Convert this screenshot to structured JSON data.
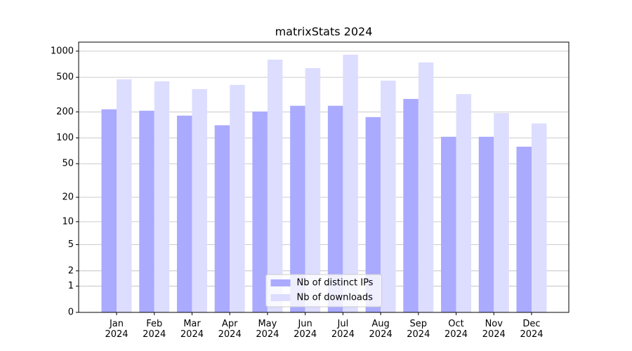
{
  "chart_data": {
    "type": "bar",
    "title": "matrixStats 2024",
    "categories": [
      "Jan\n2024",
      "Feb\n2024",
      "Mar\n2024",
      "Apr\n2024",
      "May\n2024",
      "Jun\n2024",
      "Jul\n2024",
      "Aug\n2024",
      "Sep\n2024",
      "Oct\n2024",
      "Nov\n2024",
      "Dec\n2024"
    ],
    "series": [
      {
        "name": "Nb of distinct IPs",
        "color": "#aaaaff",
        "values": [
          214,
          206,
          181,
          140,
          202,
          235,
          235,
          174,
          282,
          103,
          103,
          79
        ]
      },
      {
        "name": "Nb of downloads",
        "color": "#ddddff",
        "values": [
          475,
          449,
          366,
          409,
          799,
          639,
          911,
          458,
          742,
          321,
          194,
          147
        ]
      }
    ],
    "yscale": "log1p",
    "ylim": [
      0,
      1270
    ],
    "yticks": [
      0,
      1,
      2,
      5,
      10,
      20,
      50,
      100,
      200,
      500,
      1000
    ],
    "grid": true,
    "legend": "lower center"
  }
}
